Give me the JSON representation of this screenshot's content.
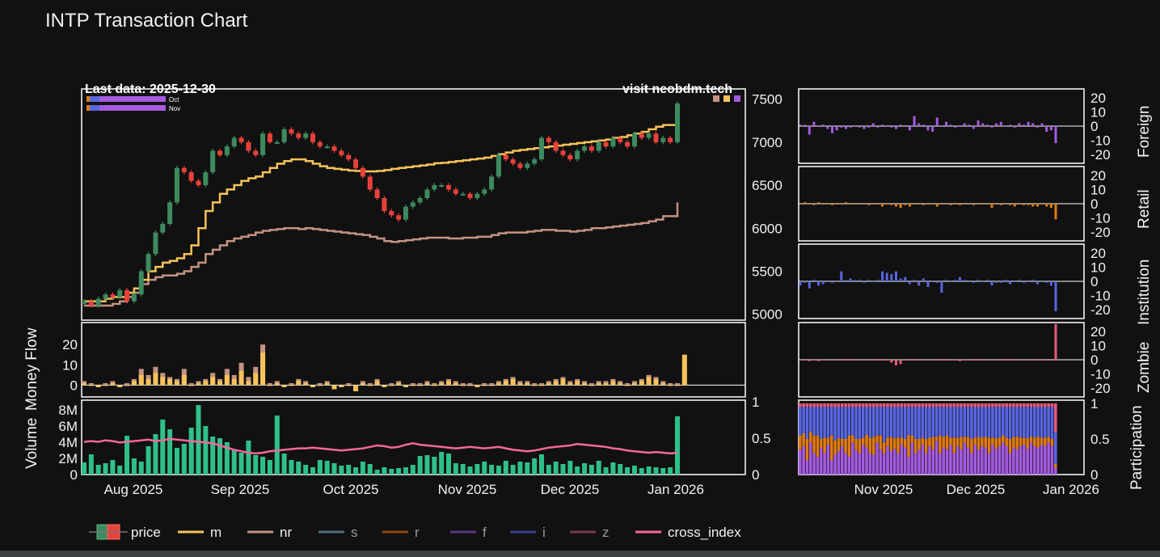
{
  "title": "INTP Transaction Chart",
  "annotations": {
    "last_data": "Last data: 2025-12-30",
    "watermark": "visit neobdm.tech",
    "mini_legend": [
      "Oct",
      "Nov"
    ]
  },
  "colors": {
    "background": "#111111",
    "panel_border": "#ffffff",
    "up": "#3d8a5f",
    "down": "#e8413a",
    "m": "#f7c35a",
    "nr": "#c49383",
    "foreign": "#a45be0",
    "retail": "#e07b12",
    "institution": "#5866e0",
    "zombie": "#e85a7a",
    "volume": "#2fc08a",
    "cross_index": "#f5679a"
  },
  "legend": [
    {
      "key": "price",
      "label": "price",
      "active": true
    },
    {
      "key": "m",
      "label": "m",
      "active": true
    },
    {
      "key": "nr",
      "label": "nr",
      "active": true
    },
    {
      "key": "s",
      "label": "s",
      "active": false
    },
    {
      "key": "r",
      "label": "r",
      "active": false
    },
    {
      "key": "f",
      "label": "f",
      "active": false
    },
    {
      "key": "i",
      "label": "i",
      "active": false
    },
    {
      "key": "z",
      "label": "z",
      "active": false
    },
    {
      "key": "cross_index",
      "label": "cross_index",
      "active": true
    }
  ],
  "chart_data": [
    {
      "type": "candlestick",
      "panel": "price",
      "ylim": [
        4950,
        7600
      ],
      "yticks": [
        5000,
        5500,
        6000,
        6500,
        7000,
        7500
      ],
      "xticks": [
        "Aug 2025",
        "Sep 2025",
        "Oct 2025",
        "Nov 2025",
        "Dec 2025",
        "Jan 2026"
      ],
      "close": [
        5150,
        5100,
        5180,
        5230,
        5200,
        5280,
        5150,
        5230,
        5500,
        5700,
        5950,
        6050,
        6300,
        6700,
        6650,
        6550,
        6500,
        6650,
        6900,
        6850,
        6950,
        7050,
        7000,
        6900,
        6850,
        7100,
        7000,
        7000,
        7150,
        7100,
        7050,
        7100,
        7000,
        6950,
        6950,
        6900,
        6850,
        6800,
        6700,
        6600,
        6450,
        6350,
        6200,
        6150,
        6100,
        6250,
        6300,
        6350,
        6450,
        6500,
        6500,
        6450,
        6400,
        6400,
        6350,
        6400,
        6450,
        6600,
        6850,
        6800,
        6750,
        6700,
        6750,
        6800,
        7050,
        7000,
        6900,
        6850,
        6800,
        6900,
        6950,
        6900,
        7000,
        6950,
        7050,
        7000,
        6950,
        7100,
        7050,
        7100,
        7000,
        7050,
        7000,
        7450
      ],
      "ma_m": [
        5150,
        5150,
        5150,
        5180,
        5200,
        5200,
        5250,
        5300,
        5400,
        5500,
        5550,
        5600,
        5620,
        5650,
        5700,
        5800,
        6000,
        6200,
        6300,
        6400,
        6450,
        6500,
        6550,
        6580,
        6600,
        6650,
        6700,
        6750,
        6780,
        6800,
        6800,
        6780,
        6750,
        6720,
        6700,
        6690,
        6680,
        6670,
        6665,
        6660,
        6660,
        6665,
        6675,
        6690,
        6700,
        6710,
        6720,
        6730,
        6740,
        6755,
        6760,
        6770,
        6780,
        6790,
        6800,
        6810,
        6820,
        6840,
        6860,
        6880,
        6900,
        6910,
        6920,
        6930,
        6940,
        6950,
        6960,
        6970,
        6980,
        6990,
        7000,
        7010,
        7020,
        7030,
        7050,
        7060,
        7080,
        7100,
        7120,
        7150,
        7180,
        7200,
        7200,
        7230
      ],
      "ma_nr": [
        5100,
        5100,
        5100,
        5100,
        5120,
        5150,
        5200,
        5250,
        5350,
        5400,
        5430,
        5450,
        5450,
        5470,
        5500,
        5550,
        5600,
        5700,
        5750,
        5800,
        5850,
        5880,
        5900,
        5920,
        5950,
        5970,
        5980,
        5990,
        6000,
        6000,
        5990,
        6000,
        5990,
        5980,
        5970,
        5960,
        5950,
        5940,
        5930,
        5920,
        5900,
        5880,
        5850,
        5840,
        5850,
        5860,
        5870,
        5880,
        5890,
        5890,
        5890,
        5880,
        5880,
        5890,
        5890,
        5900,
        5900,
        5920,
        5940,
        5950,
        5950,
        5950,
        5960,
        5970,
        5980,
        5980,
        5970,
        5970,
        5960,
        5970,
        5980,
        6000,
        6000,
        6010,
        6020,
        6030,
        6040,
        6050,
        6060,
        6080,
        6100,
        6140,
        6140,
        6300
      ]
    },
    {
      "type": "bar",
      "panel": "money_flow",
      "ylabel": "Money Flow",
      "ylim": [
        -5,
        30
      ],
      "yticks": [
        0,
        10,
        20
      ],
      "m_values": [
        1,
        0,
        -1,
        0,
        1,
        -1,
        0,
        2,
        5,
        3,
        6,
        4,
        3,
        2,
        5,
        0,
        1,
        2,
        4,
        2,
        5,
        3,
        7,
        2,
        6,
        16,
        0,
        1,
        -1,
        0,
        2,
        1,
        -1,
        0,
        1,
        -2,
        -1,
        0,
        -3,
        1,
        0,
        2,
        -1,
        0,
        1,
        -1,
        0,
        0,
        1,
        0,
        1,
        2,
        1,
        0,
        0,
        -1,
        0,
        0,
        1,
        2,
        3,
        1,
        1,
        0,
        0,
        1,
        2,
        3,
        1,
        2,
        1,
        0,
        1,
        1,
        2,
        1,
        0,
        1,
        2,
        4,
        3,
        1,
        0,
        0,
        15
      ],
      "nr_values": [
        2,
        1,
        -1,
        1,
        2,
        -1,
        1,
        3,
        8,
        5,
        9,
        6,
        4,
        3,
        8,
        1,
        2,
        3,
        6,
        3,
        8,
        5,
        11,
        4,
        9,
        20,
        1,
        2,
        -1,
        1,
        3,
        2,
        -1,
        1,
        2,
        -2,
        -1,
        1,
        -3,
        2,
        1,
        3,
        -1,
        1,
        2,
        -1,
        1,
        1,
        2,
        1,
        2,
        3,
        2,
        1,
        1,
        -1,
        1,
        1,
        2,
        3,
        4,
        2,
        2,
        1,
        1,
        2,
        3,
        4,
        2,
        3,
        2,
        1,
        2,
        2,
        3,
        2,
        1,
        2,
        3,
        5,
        4,
        2,
        1,
        1,
        9
      ]
    },
    {
      "type": "bar",
      "panel": "volume",
      "ylabel": "Volume",
      "ylim": [
        0,
        9000000
      ],
      "yticks": [
        0,
        2000000,
        4000000,
        6000000,
        8000000
      ],
      "ytick_labels": [
        "0",
        "2M",
        "4M",
        "6M",
        "8M"
      ],
      "y2ticks": [
        0,
        0.5,
        1
      ],
      "values": [
        1500000,
        2500000,
        1200000,
        1400000,
        1800000,
        1100000,
        4800000,
        2000000,
        1600000,
        3500000,
        5000000,
        6800000,
        5600000,
        3300000,
        3800000,
        5800000,
        8600000,
        6000000,
        4700000,
        4500000,
        4000000,
        3000000,
        2700000,
        4200000,
        2400000,
        2200000,
        1800000,
        7300000,
        2600000,
        1800000,
        1600000,
        1200000,
        900000,
        1800000,
        1700000,
        1400000,
        1100000,
        1200000,
        900000,
        1600000,
        1300000,
        600000,
        900000,
        700000,
        800000,
        900000,
        1200000,
        2300000,
        2400000,
        2200000,
        2800000,
        2600000,
        1400000,
        1300000,
        1000000,
        1300000,
        1600000,
        1200000,
        1100000,
        1700000,
        1200000,
        1600000,
        1500000,
        2000000,
        2500000,
        1200000,
        1600000,
        1300000,
        1700000,
        1000000,
        1400000,
        1200000,
        1700000,
        900000,
        1500000,
        1300000,
        900000,
        1100000,
        800000,
        1000000,
        900000,
        800000,
        900000,
        7200000
      ],
      "cross_index": [
        0.45,
        0.46,
        0.45,
        0.47,
        0.46,
        0.44,
        0.45,
        0.46,
        0.47,
        0.48,
        0.46,
        0.47,
        0.49,
        0.48,
        0.47,
        0.46,
        0.45,
        0.44,
        0.43,
        0.4,
        0.37,
        0.34,
        0.32,
        0.3,
        0.29,
        0.3,
        0.32,
        0.33,
        0.34,
        0.35,
        0.36,
        0.36,
        0.37,
        0.36,
        0.35,
        0.34,
        0.33,
        0.34,
        0.35,
        0.36,
        0.38,
        0.4,
        0.39,
        0.37,
        0.38,
        0.41,
        0.43,
        0.41,
        0.4,
        0.39,
        0.38,
        0.37,
        0.36,
        0.37,
        0.38,
        0.37,
        0.36,
        0.37,
        0.38,
        0.36,
        0.34,
        0.33,
        0.32,
        0.33,
        0.35,
        0.37,
        0.38,
        0.39,
        0.4,
        0.42,
        0.41,
        0.4,
        0.39,
        0.38,
        0.36,
        0.35,
        0.33,
        0.32,
        0.31,
        0.3,
        0.31,
        0.3,
        0.29,
        0.3
      ]
    },
    {
      "type": "bar",
      "panel": "foreign",
      "ylabel": "Foreign",
      "ylim": [
        -25,
        25
      ],
      "yticks": [
        -20,
        -10,
        0,
        10,
        20
      ],
      "values": [
        1,
        1,
        -6,
        3,
        0,
        1,
        -2,
        -5,
        -3,
        -1,
        -2,
        -1,
        0,
        -1,
        -2,
        -1,
        2,
        -1,
        1,
        0,
        -1,
        -2,
        1,
        0,
        -3,
        7,
        2,
        1,
        -3,
        -4,
        6,
        0,
        3,
        1,
        -1,
        0,
        2,
        1,
        -2,
        4,
        2,
        1,
        -1,
        2,
        3,
        0,
        1,
        -1,
        2,
        1,
        3,
        2,
        -1,
        2,
        -4,
        -3,
        -12
      ]
    },
    {
      "type": "bar",
      "panel": "retail",
      "ylabel": "Retail",
      "ylim": [
        -25,
        25
      ],
      "yticks": [
        -20,
        -10,
        0,
        10,
        20
      ],
      "values": [
        0,
        1,
        0,
        -1,
        1,
        0,
        0,
        -1,
        0,
        0,
        1,
        0,
        0,
        0,
        0,
        -1,
        0,
        0,
        -2,
        0,
        -1,
        -2,
        -3,
        -1,
        -2,
        0,
        0,
        -1,
        0,
        0,
        -2,
        0,
        0,
        -1,
        0,
        -1,
        0,
        0,
        -1,
        0,
        0,
        0,
        -3,
        0,
        -1,
        0,
        -1,
        -2,
        0,
        -1,
        -1,
        -2,
        -2,
        0,
        -2,
        -3,
        -11
      ]
    },
    {
      "type": "bar",
      "panel": "institution",
      "ylabel": "Institution",
      "ylim": [
        -25,
        25
      ],
      "yticks": [
        -20,
        -10,
        0,
        10,
        20
      ],
      "values": [
        -3,
        -1,
        -5,
        1,
        -3,
        -2,
        0,
        -1,
        0,
        7,
        1,
        2,
        1,
        1,
        -1,
        1,
        0,
        1,
        7,
        6,
        5,
        7,
        2,
        3,
        -2,
        1,
        -3,
        2,
        -4,
        0,
        -1,
        -8,
        1,
        0,
        1,
        3,
        1,
        0,
        -1,
        1,
        0,
        1,
        -3,
        -1,
        -1,
        1,
        -2,
        0,
        1,
        -1,
        0,
        1,
        -2,
        0,
        -1,
        -3,
        -21
      ]
    },
    {
      "type": "bar",
      "panel": "zombie",
      "ylabel": "Zombie",
      "ylim": [
        -25,
        25
      ],
      "yticks": [
        -20,
        -10,
        0,
        10,
        20
      ],
      "values": [
        0,
        0,
        -1,
        0,
        -1,
        0,
        0,
        0,
        0,
        0,
        0,
        0,
        0,
        0,
        0,
        0,
        0,
        0,
        0,
        0,
        -2,
        -4,
        -3,
        0,
        0,
        0,
        0,
        0,
        0,
        0,
        0,
        0,
        0,
        0,
        0,
        -1,
        0,
        0,
        0,
        0,
        0,
        0,
        0,
        0,
        0,
        0,
        0,
        0,
        0,
        0,
        0,
        0,
        0,
        0,
        0,
        0,
        25
      ]
    },
    {
      "type": "stacked_bar",
      "panel": "participation",
      "ylabel": "Participation",
      "ylim": [
        0,
        1
      ],
      "yticks": [
        0,
        0.5,
        1
      ],
      "xticks": [
        "Nov 2025",
        "Dec 2025",
        "Jan 2026"
      ],
      "foreign_share": [
        0.35,
        0.4,
        0.2,
        0.45,
        0.3,
        0.25,
        0.38,
        0.3,
        0.42,
        0.2,
        0.28,
        0.33,
        0.4,
        0.3,
        0.25,
        0.45,
        0.35,
        0.3,
        0.42,
        0.38,
        0.3,
        0.28,
        0.45,
        0.35,
        0.3,
        0.4,
        0.33,
        0.36,
        0.3,
        0.42,
        0.38,
        0.25,
        0.45,
        0.3,
        0.35,
        0.42,
        0.3,
        0.4,
        0.35,
        0.48,
        0.3,
        0.38,
        0.35,
        0.42,
        0.3,
        0.4,
        0.35,
        0.45,
        0.38,
        0.3,
        0.42,
        0.35,
        0.4,
        0.38,
        0.3,
        0.42,
        0.36,
        0.4,
        0.45,
        0.4,
        0.3,
        0.38,
        0.35,
        0.4,
        0.42,
        0.36,
        0.45,
        0.4,
        0.38,
        0.42,
        0.4,
        0.45,
        0.4,
        0.1
      ],
      "retail_share": [
        0.2,
        0.18,
        0.3,
        0.15,
        0.25,
        0.3,
        0.12,
        0.22,
        0.1,
        0.35,
        0.2,
        0.18,
        0.1,
        0.2,
        0.3,
        0.1,
        0.15,
        0.2,
        0.1,
        0.18,
        0.22,
        0.25,
        0.1,
        0.2,
        0.15,
        0.12,
        0.2,
        0.15,
        0.22,
        0.1,
        0.12,
        0.3,
        0.1,
        0.2,
        0.15,
        0.1,
        0.2,
        0.12,
        0.18,
        0.05,
        0.25,
        0.15,
        0.2,
        0.1,
        0.22,
        0.12,
        0.18,
        0.08,
        0.15,
        0.2,
        0.1,
        0.18,
        0.12,
        0.15,
        0.22,
        0.1,
        0.15,
        0.12,
        0.1,
        0.12,
        0.2,
        0.15,
        0.18,
        0.12,
        0.1,
        0.15,
        0.08,
        0.12,
        0.15,
        0.1,
        0.12,
        0.08,
        0.1,
        0.05
      ],
      "institution_share": [
        0.4,
        0.37,
        0.45,
        0.35,
        0.4,
        0.4,
        0.45,
        0.43,
        0.43,
        0.4,
        0.47,
        0.44,
        0.45,
        0.45,
        0.4,
        0.4,
        0.45,
        0.45,
        0.43,
        0.39,
        0.43,
        0.42,
        0.4,
        0.4,
        0.5,
        0.43,
        0.42,
        0.44,
        0.43,
        0.43,
        0.45,
        0.4,
        0.4,
        0.45,
        0.45,
        0.43,
        0.45,
        0.43,
        0.42,
        0.42,
        0.4,
        0.42,
        0.4,
        0.43,
        0.43,
        0.43,
        0.42,
        0.42,
        0.42,
        0.45,
        0.43,
        0.42,
        0.43,
        0.42,
        0.43,
        0.43,
        0.44,
        0.43,
        0.4,
        0.43,
        0.45,
        0.42,
        0.42,
        0.43,
        0.43,
        0.44,
        0.42,
        0.43,
        0.42,
        0.43,
        0.43,
        0.42,
        0.45,
        0.45
      ]
    }
  ]
}
